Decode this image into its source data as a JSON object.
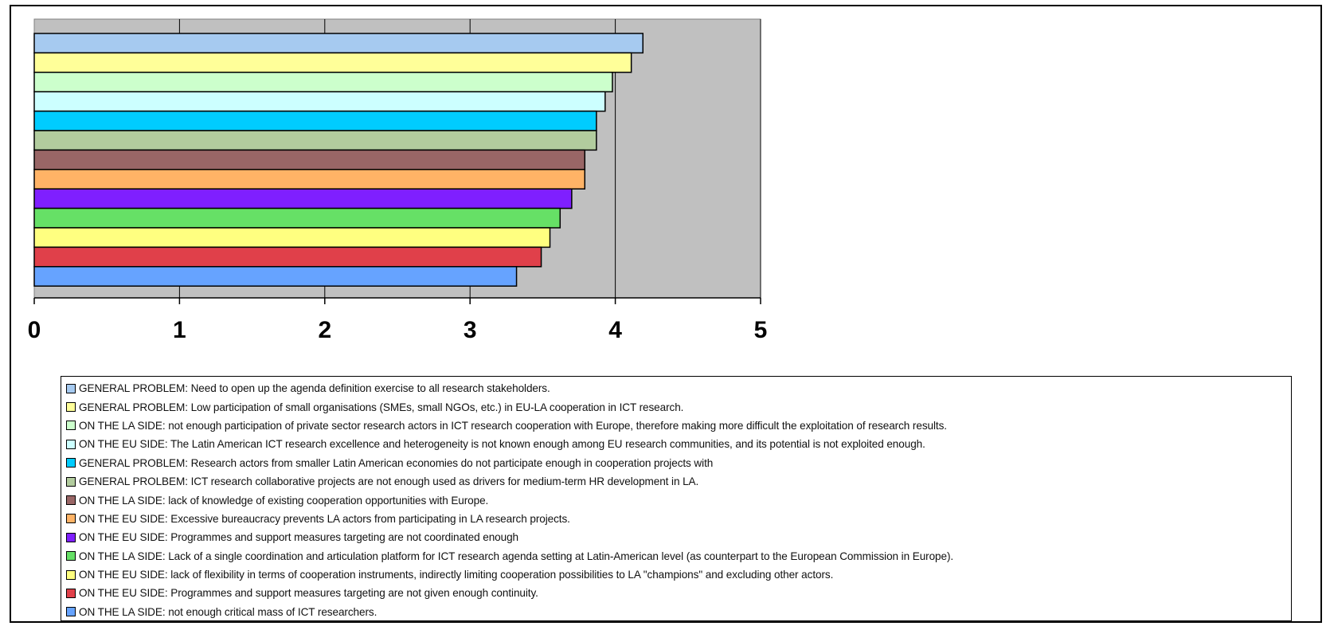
{
  "chart_data": {
    "type": "bar",
    "orientation": "horizontal",
    "xlim": [
      0,
      5
    ],
    "x_ticks": [
      "0",
      "1",
      "2",
      "3",
      "4",
      "5"
    ],
    "grid": true,
    "legend_position": "bottom",
    "categories": [
      "GENERAL PROBLEM: Need to open up the agenda definition exercise to all research stakeholders.",
      "GENERAL PROBLEM: Low participation of small organisations (SMEs, small NGOs, etc.) in EU-LA cooperation in ICT research.",
      "ON THE LA SIDE: not enough participation of private sector research actors in ICT research cooperation with Europe, therefore making more difficult the exploitation of research results.",
      "ON THE EU SIDE: The Latin American ICT research excellence and heterogeneity is not known enough among EU research communities, and its potential is not exploited enough.",
      "GENERAL PROBLEM: Research actors from smaller Latin American economies do not participate enough in cooperation projects with",
      "GENERAL PROLBEM: ICT research collaborative projects are not enough used as drivers for medium-term HR development in LA.",
      "ON THE LA SIDE: lack of knowledge of existing cooperation opportunities with Europe.",
      "ON THE EU SIDE: Excessive bureaucracy prevents LA actors from participating in LA research projects.",
      "ON THE EU SIDE: Programmes and support measures targeting are not coordinated enough",
      "ON THE LA SIDE: Lack of a single coordination and articulation platform for ICT research agenda setting at Latin-American level (as counterpart to the European Commission in Europe).",
      "ON THE EU SIDE: lack of flexibility in terms of cooperation instruments, indirectly limiting cooperation possibilities to LA \"champions\" and excluding other actors.",
      "ON THE EU SIDE: Programmes and support measures targeting are not given enough continuity.",
      "ON THE LA SIDE: not enough critical mass of ICT researchers."
    ],
    "values": [
      4.19,
      4.11,
      3.98,
      3.93,
      3.87,
      3.87,
      3.79,
      3.79,
      3.7,
      3.62,
      3.55,
      3.49,
      3.32
    ],
    "colors": [
      "#a6caf0",
      "#ffff99",
      "#ccffcc",
      "#ccffff",
      "#00ccff",
      "#b2cc9e",
      "#996666",
      "#ffb366",
      "#7f1fff",
      "#66e066",
      "#ffff80",
      "#e0404a",
      "#66a3ff"
    ]
  }
}
